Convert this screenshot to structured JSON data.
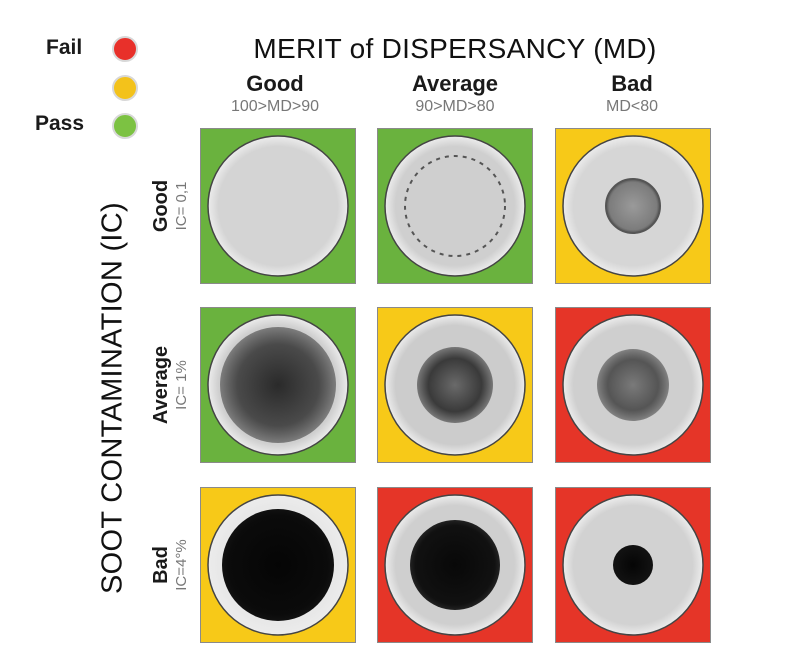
{
  "legend": [
    {
      "label": "Fail",
      "color": "#e8302a"
    },
    {
      "label": "",
      "color": "#f3c21b"
    },
    {
      "label": "Pass",
      "color": "#7cc242"
    }
  ],
  "title": "MERIT of DISPERSANCY (MD)",
  "side_title": "SOOT CONTAMINATION (IC)",
  "columns": [
    {
      "name": "Good",
      "condition": "100>MD>90"
    },
    {
      "name": "Average",
      "condition": "90>MD>80"
    },
    {
      "name": "Bad",
      "condition": "MD<80"
    }
  ],
  "rows": [
    {
      "name": "Good",
      "condition": "IC= 0,1"
    },
    {
      "name": "Average",
      "condition": "IC= 1%"
    },
    {
      "name": "Bad",
      "condition": "IC=4°%"
    }
  ],
  "status_colors": {
    "fail": "#e53528",
    "warn": "#f7c918",
    "pass": "#6ab23e"
  },
  "cells": [
    [
      {
        "status": "pass",
        "spot": "faint"
      },
      {
        "status": "pass",
        "spot": "ring"
      },
      {
        "status": "warn",
        "spot": "small-grey"
      }
    ],
    [
      {
        "status": "pass",
        "spot": "large-dark"
      },
      {
        "status": "warn",
        "spot": "medium-dark"
      },
      {
        "status": "fail",
        "spot": "medium-grey"
      }
    ],
    [
      {
        "status": "warn",
        "spot": "large-black"
      },
      {
        "status": "fail",
        "spot": "medium-black"
      },
      {
        "status": "fail",
        "spot": "small-black"
      }
    ]
  ]
}
